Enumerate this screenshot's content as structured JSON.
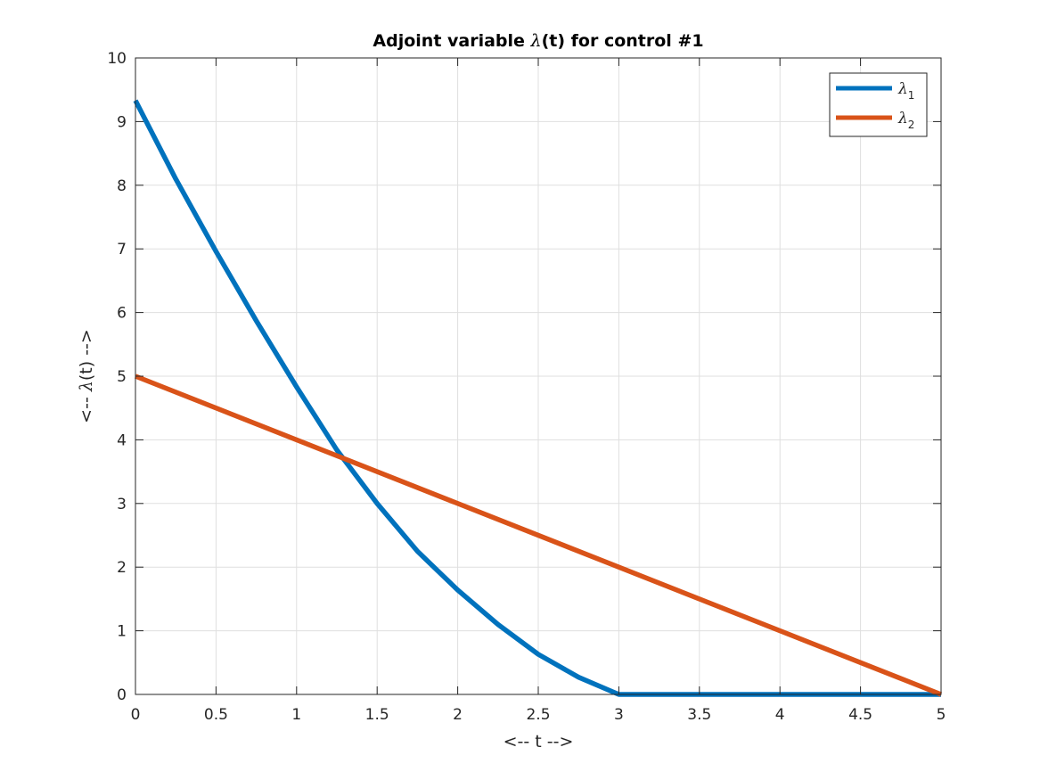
{
  "chart_data": {
    "type": "line",
    "title_prefix": "Adjoint variable ",
    "title_symbol": "λ",
    "title_suffix": "(t) for control #1",
    "xlabel": "<-- t -->",
    "ylabel_prefix": "<-- ",
    "ylabel_symbol": "λ",
    "ylabel_suffix": "(t) -->",
    "xlim": [
      0,
      5
    ],
    "ylim": [
      0,
      10
    ],
    "xticks": [
      0,
      0.5,
      1,
      1.5,
      2,
      2.5,
      3,
      3.5,
      4,
      4.5,
      5
    ],
    "xtick_labels": [
      "0",
      "0.5",
      "1",
      "1.5",
      "2",
      "2.5",
      "3",
      "3.5",
      "4",
      "4.5",
      "5"
    ],
    "yticks": [
      0,
      1,
      2,
      3,
      4,
      5,
      6,
      7,
      8,
      9,
      10
    ],
    "ytick_labels": [
      "0",
      "1",
      "2",
      "3",
      "4",
      "5",
      "6",
      "7",
      "8",
      "9",
      "10"
    ],
    "grid": true,
    "legend_position": "top-right",
    "series": [
      {
        "name_symbol": "λ",
        "name_sub": "1",
        "color": "#0072BD",
        "x": [
          0,
          0.25,
          0.5,
          0.75,
          1,
          1.25,
          1.5,
          1.75,
          2,
          2.25,
          2.5,
          2.75,
          3,
          3.5,
          4,
          4.5,
          5
        ],
        "y": [
          9.33,
          8.1,
          6.96,
          5.87,
          4.83,
          3.84,
          3.0,
          2.25,
          1.64,
          1.1,
          0.63,
          0.27,
          0.0,
          0.0,
          0.0,
          0.0,
          0.0
        ]
      },
      {
        "name_symbol": "λ",
        "name_sub": "2",
        "color": "#D95319",
        "x": [
          0,
          5
        ],
        "y": [
          5,
          0
        ]
      }
    ]
  }
}
